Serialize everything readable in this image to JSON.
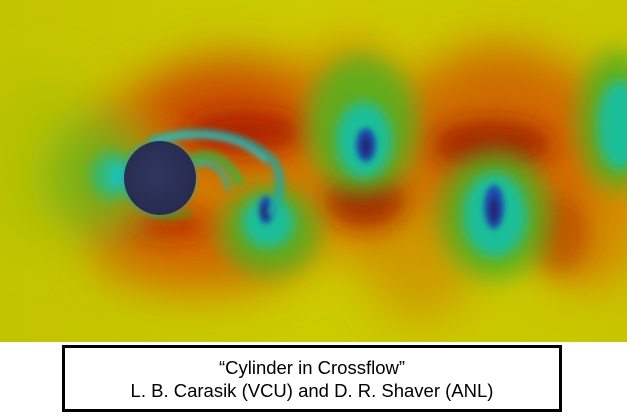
{
  "figure": {
    "description_icon": "flow-field-image",
    "colors": {
      "background_yellow": "#c8c800",
      "high_red": "#b02000",
      "mid_orange": "#e06000",
      "low_green": "#40b040",
      "lower_cyan": "#10c8c0",
      "lowest_blue": "#202870",
      "cylinder": "#2b3055"
    }
  },
  "caption": {
    "title": "“Cylinder in Crossflow”",
    "credits": "L. B. Carasik (VCU) and D. R. Shaver (ANL)"
  }
}
